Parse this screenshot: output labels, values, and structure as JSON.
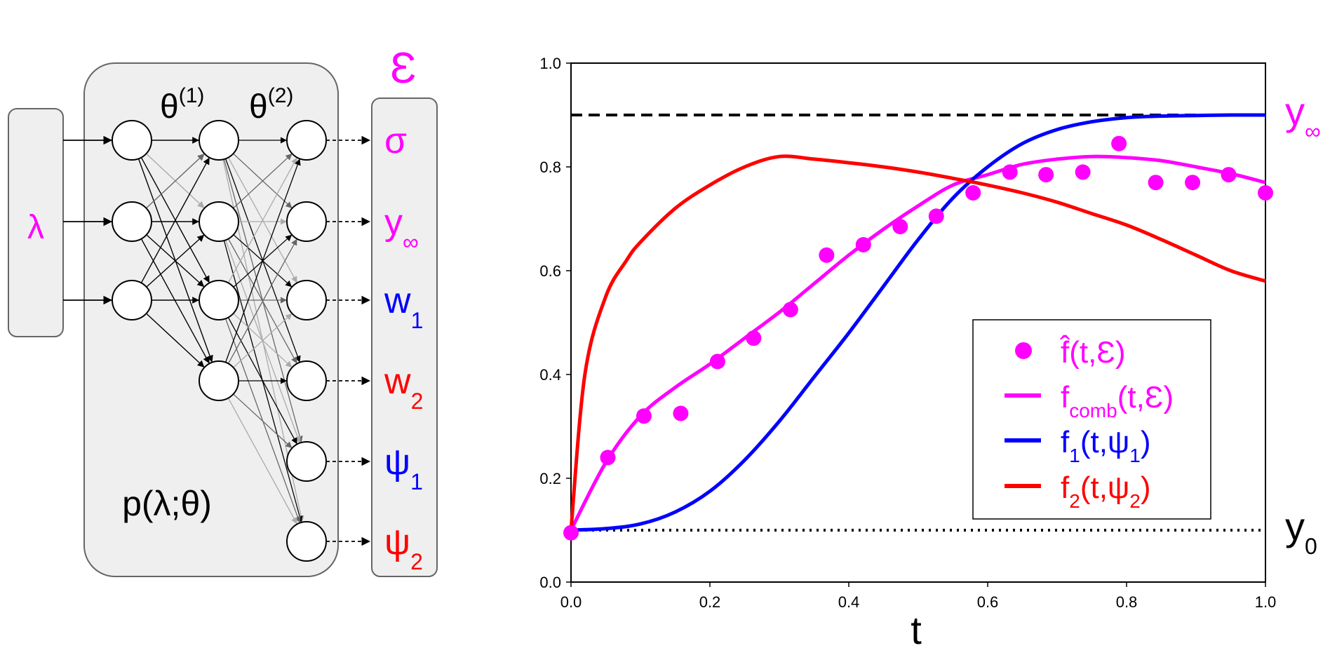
{
  "network": {
    "input_label": "λ",
    "model_label": "p(λ;θ)",
    "theta1_base": "θ",
    "theta1_sup": "(1)",
    "theta2_base": "θ",
    "theta2_sup": "(2)",
    "epsilon_label": "Ɛ",
    "outputs": [
      {
        "base": "σ",
        "sub": "",
        "color": "#ff00ff"
      },
      {
        "base": "y",
        "sub": "∞",
        "color": "#ff00ff"
      },
      {
        "base": "w",
        "sub": "1",
        "color": "#0000ff"
      },
      {
        "base": "w",
        "sub": "2",
        "color": "#ff0000"
      },
      {
        "base": "ψ",
        "sub": "1",
        "color": "#0000ff"
      },
      {
        "base": "ψ",
        "sub": "2",
        "color": "#ff0000"
      }
    ]
  },
  "chart_data": {
    "type": "line",
    "xlim": [
      0.0,
      1.0
    ],
    "ylim": [
      0.0,
      1.0
    ],
    "xlabel": "t",
    "xticks": [
      "0.0",
      "0.2",
      "0.4",
      "0.6",
      "0.8",
      "1.0"
    ],
    "yticks": [
      "0.0",
      "0.2",
      "0.4",
      "0.6",
      "0.8",
      "1.0"
    ],
    "reference_lines": [
      {
        "name": "y_inf",
        "y": 0.9,
        "style": "dashed",
        "color": "#000000",
        "label_base": "y",
        "label_sub": "∞",
        "label_color": "#ff00ff"
      },
      {
        "name": "y_0",
        "y": 0.1,
        "style": "dotted",
        "color": "#000000",
        "label_base": "y",
        "label_sub": "0",
        "label_color": "#000000"
      }
    ],
    "scatter": {
      "name": "f_hat",
      "color": "#ff00ff",
      "x": [
        0.0,
        0.053,
        0.105,
        0.158,
        0.211,
        0.263,
        0.316,
        0.368,
        0.421,
        0.474,
        0.526,
        0.579,
        0.632,
        0.684,
        0.737,
        0.789,
        0.842,
        0.895,
        0.947,
        1.0
      ],
      "y": [
        0.095,
        0.24,
        0.32,
        0.325,
        0.425,
        0.47,
        0.525,
        0.63,
        0.65,
        0.685,
        0.705,
        0.75,
        0.79,
        0.785,
        0.79,
        0.845,
        0.77,
        0.77,
        0.785,
        0.75
      ]
    },
    "series": [
      {
        "name": "f_comb",
        "color": "#ff00ff",
        "x": [
          0,
          0.05,
          0.1,
          0.15,
          0.2,
          0.25,
          0.3,
          0.35,
          0.4,
          0.45,
          0.5,
          0.55,
          0.6,
          0.65,
          0.7,
          0.75,
          0.8,
          0.85,
          0.9,
          0.95,
          1.0
        ],
        "y": [
          0.1,
          0.23,
          0.32,
          0.375,
          0.42,
          0.47,
          0.52,
          0.575,
          0.63,
          0.68,
          0.725,
          0.765,
          0.785,
          0.805,
          0.815,
          0.82,
          0.818,
          0.812,
          0.8,
          0.787,
          0.77
        ]
      },
      {
        "name": "f_1",
        "color": "#0000ff",
        "x": [
          0,
          0.05,
          0.1,
          0.15,
          0.2,
          0.25,
          0.3,
          0.35,
          0.4,
          0.45,
          0.5,
          0.55,
          0.6,
          0.65,
          0.7,
          0.75,
          0.8,
          0.85,
          0.9,
          0.95,
          1.0
        ],
        "y": [
          0.1,
          0.103,
          0.112,
          0.135,
          0.175,
          0.235,
          0.31,
          0.395,
          0.48,
          0.57,
          0.66,
          0.74,
          0.8,
          0.845,
          0.872,
          0.887,
          0.895,
          0.898,
          0.899,
          0.9,
          0.9
        ]
      },
      {
        "name": "f_2",
        "color": "#ff0000",
        "x": [
          0,
          0.02,
          0.05,
          0.08,
          0.1,
          0.15,
          0.2,
          0.25,
          0.3,
          0.35,
          0.4,
          0.45,
          0.5,
          0.55,
          0.6,
          0.65,
          0.7,
          0.75,
          0.8,
          0.85,
          0.9,
          0.95,
          1.0
        ],
        "y": [
          0.1,
          0.4,
          0.55,
          0.62,
          0.655,
          0.72,
          0.765,
          0.8,
          0.82,
          0.815,
          0.808,
          0.8,
          0.79,
          0.778,
          0.765,
          0.75,
          0.732,
          0.71,
          0.688,
          0.66,
          0.63,
          0.6,
          0.58
        ]
      }
    ],
    "legend": {
      "position": "lower-right",
      "entries": [
        {
          "kind": "marker",
          "color": "#ff00ff",
          "parts": [
            {
              "t": "f̂",
              "c": "#ff00ff",
              "s": "n"
            },
            {
              "t": "(t,",
              "c": "#ff00ff",
              "s": "n"
            },
            {
              "t": "Ɛ",
              "c": "#ff00ff",
              "s": "n"
            },
            {
              "t": ")",
              "c": "#ff00ff",
              "s": "n"
            }
          ]
        },
        {
          "kind": "line",
          "color": "#ff00ff",
          "parts": [
            {
              "t": "f",
              "c": "#ff00ff",
              "s": "n"
            },
            {
              "t": "comb",
              "c": "#ff00ff",
              "s": "sub"
            },
            {
              "t": "(t,",
              "c": "#ff00ff",
              "s": "n"
            },
            {
              "t": "Ɛ",
              "c": "#ff00ff",
              "s": "n"
            },
            {
              "t": ")",
              "c": "#ff00ff",
              "s": "n"
            }
          ]
        },
        {
          "kind": "line",
          "color": "#0000ff",
          "parts": [
            {
              "t": "f",
              "c": "#0000ff",
              "s": "n"
            },
            {
              "t": "1",
              "c": "#0000ff",
              "s": "sub"
            },
            {
              "t": "(t,",
              "c": "#0000ff",
              "s": "n"
            },
            {
              "t": "ψ",
              "c": "#0000ff",
              "s": "n"
            },
            {
              "t": "1",
              "c": "#0000ff",
              "s": "sub"
            },
            {
              "t": ")",
              "c": "#0000ff",
              "s": "n"
            }
          ]
        },
        {
          "kind": "line",
          "color": "#ff0000",
          "parts": [
            {
              "t": "f",
              "c": "#ff0000",
              "s": "n"
            },
            {
              "t": "2",
              "c": "#ff0000",
              "s": "sub"
            },
            {
              "t": "(t,",
              "c": "#ff0000",
              "s": "n"
            },
            {
              "t": "ψ",
              "c": "#ff0000",
              "s": "n"
            },
            {
              "t": "2",
              "c": "#ff0000",
              "s": "sub"
            },
            {
              "t": ")",
              "c": "#ff0000",
              "s": "n"
            }
          ]
        }
      ]
    }
  }
}
